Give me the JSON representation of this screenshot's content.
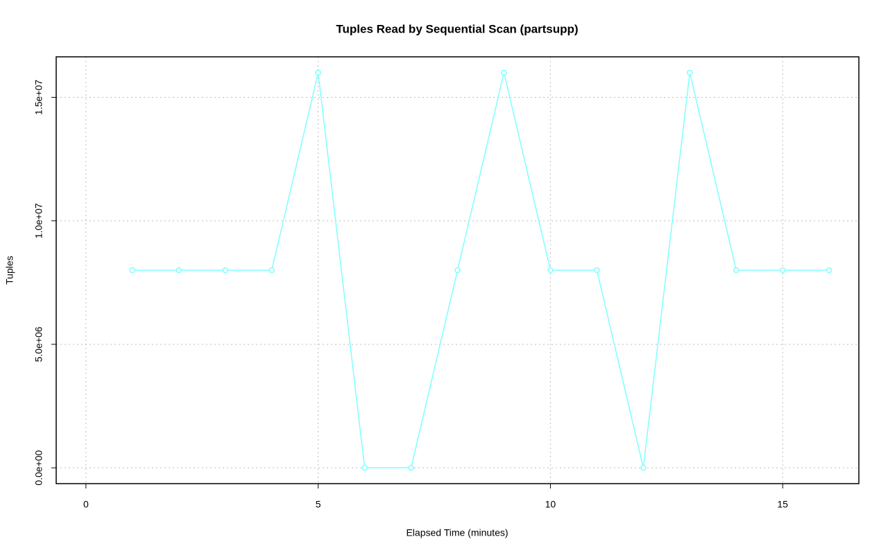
{
  "chart_data": {
    "type": "line",
    "title": "Tuples Read by Sequential Scan (partsupp)",
    "x_label": "Elapsed Time (minutes)",
    "y_label": "Tuples",
    "x": [
      1,
      2,
      3,
      4,
      5,
      6,
      7,
      8,
      9,
      10,
      11,
      12,
      13,
      14,
      15,
      16
    ],
    "series": [
      {
        "color": "#7fffff",
        "values": [
          8000000,
          8000000,
          8000000,
          8000000,
          16000000,
          0,
          0,
          8000000,
          16000000,
          8000000,
          8000000,
          0,
          16000000,
          8000000,
          8000000,
          8000000
        ]
      }
    ],
    "xlim": [
      -0.64,
      16.64
    ],
    "ylim": [
      -640000,
      16640000
    ],
    "xticks": [
      0,
      5,
      10,
      15
    ],
    "yticks": [
      {
        "value": 0,
        "label": "0.0e+00"
      },
      {
        "value": 5000000,
        "label": "5.0e+06"
      },
      {
        "value": 10000000,
        "label": "1.0e+07"
      },
      {
        "value": 15000000,
        "label": "1.5e+07"
      }
    ],
    "grid": true
  }
}
